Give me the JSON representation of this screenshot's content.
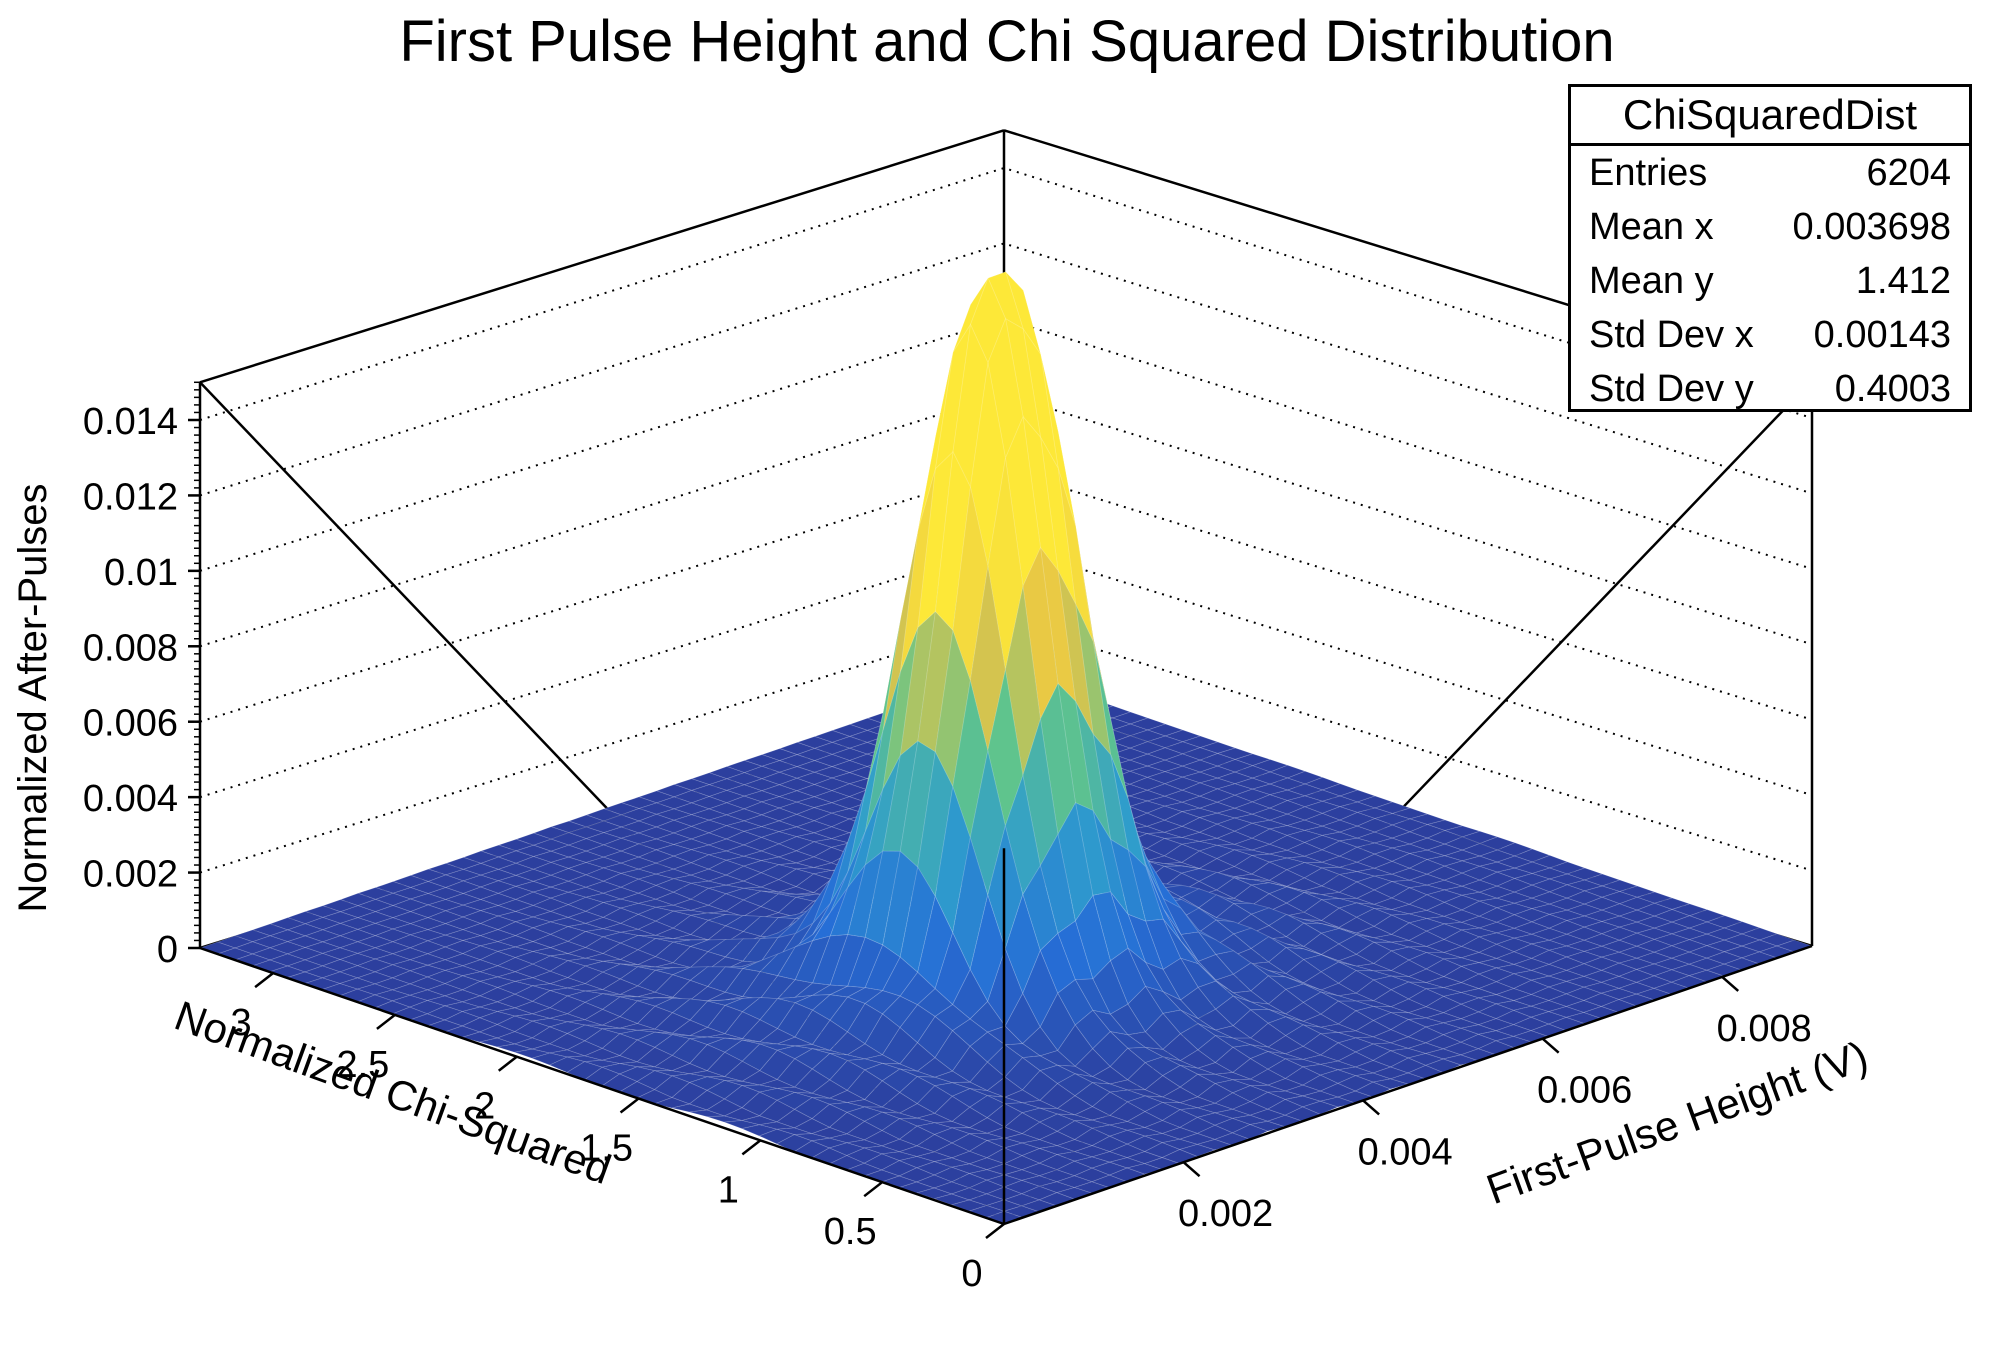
{
  "chart_data": {
    "type": "surface",
    "title": "First Pulse Height and Chi Squared Distribution",
    "xlabel": "First-Pulse Height (V)",
    "ylabel": "Normalized Chi-Squared",
    "zlabel": "Normalized After-Pulses",
    "xlim": [
      0,
      0.009
    ],
    "ylim": [
      0,
      3.3
    ],
    "zlim": [
      0,
      0.015
    ],
    "x_ticks": [
      "0.002",
      "0.004",
      "0.006",
      "0.008"
    ],
    "y_ticks": [
      "0",
      "0.5",
      "1",
      "1.5",
      "2",
      "2.5",
      "3"
    ],
    "z_ticks": [
      "0",
      "0.002",
      "0.004",
      "0.006",
      "0.008",
      "0.01",
      "0.012",
      "0.014"
    ],
    "grid": true,
    "peaks": [
      {
        "x": 0.0033,
        "y": 1.35,
        "z": 0.0119
      },
      {
        "x": 0.004,
        "y": 1.4,
        "z": 0.0118
      }
    ],
    "colors": {
      "low": "#2c3f9e",
      "mid": "#2f9dcc",
      "high": "#fde838"
    }
  },
  "stats": {
    "name": "ChiSquaredDist",
    "rows": [
      {
        "label": "Entries",
        "value": "6204"
      },
      {
        "label": "Mean x",
        "value": "0.003698"
      },
      {
        "label": "Mean y",
        "value": "1.412"
      },
      {
        "label": "Std Dev x",
        "value": "0.00143"
      },
      {
        "label": "Std Dev y",
        "value": "0.4003"
      }
    ]
  }
}
